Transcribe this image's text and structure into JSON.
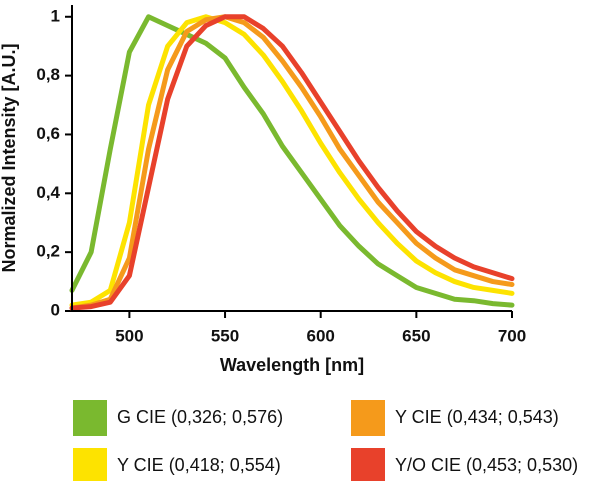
{
  "chart_data": {
    "type": "line",
    "x_label": "Wavelength [nm]",
    "y_label": "Normalized Intensity [A.U.]",
    "x": [
      470,
      480,
      490,
      500,
      510,
      520,
      530,
      540,
      550,
      560,
      570,
      580,
      590,
      600,
      610,
      620,
      630,
      640,
      650,
      660,
      670,
      680,
      690,
      700
    ],
    "series": [
      {
        "name": "G CIE (0,326; 0,576)",
        "color": "#7ab92f",
        "values": [
          0.07,
          0.2,
          0.55,
          0.88,
          1.0,
          0.97,
          0.94,
          0.91,
          0.86,
          0.76,
          0.67,
          0.56,
          0.47,
          0.38,
          0.29,
          0.22,
          0.16,
          0.12,
          0.08,
          0.06,
          0.04,
          0.035,
          0.025,
          0.02
        ]
      },
      {
        "name": "Y CIE (0,418; 0,554)",
        "color": "#fde300",
        "values": [
          0.02,
          0.03,
          0.07,
          0.3,
          0.7,
          0.9,
          0.98,
          1.0,
          0.98,
          0.94,
          0.87,
          0.78,
          0.68,
          0.57,
          0.47,
          0.38,
          0.3,
          0.23,
          0.17,
          0.13,
          0.1,
          0.08,
          0.07,
          0.06
        ]
      },
      {
        "name": "Y CIE (0,434; 0,543)",
        "color": "#f59a1b",
        "values": [
          0.01,
          0.02,
          0.04,
          0.18,
          0.55,
          0.82,
          0.95,
          0.99,
          1.0,
          0.98,
          0.93,
          0.85,
          0.76,
          0.66,
          0.55,
          0.46,
          0.37,
          0.3,
          0.23,
          0.18,
          0.14,
          0.12,
          0.1,
          0.09
        ]
      },
      {
        "name": "Y/O CIE (0,453; 0,530)",
        "color": "#e8412b",
        "values": [
          0.01,
          0.015,
          0.03,
          0.12,
          0.42,
          0.72,
          0.9,
          0.97,
          1.0,
          1.0,
          0.96,
          0.9,
          0.81,
          0.71,
          0.61,
          0.51,
          0.42,
          0.34,
          0.27,
          0.22,
          0.18,
          0.15,
          0.13,
          0.11
        ]
      }
    ],
    "xlim": [
      470,
      700
    ],
    "xticks": [
      500,
      550,
      600,
      650,
      700
    ],
    "ylim": [
      0,
      1.04
    ],
    "yticks": [
      0,
      {
        "value": 0.2,
        "label": "0,2"
      },
      {
        "value": 0.4,
        "label": "0,4"
      },
      {
        "value": 0.6,
        "label": "0,6"
      },
      {
        "value": 0.8,
        "label": "0,8"
      },
      1
    ]
  }
}
